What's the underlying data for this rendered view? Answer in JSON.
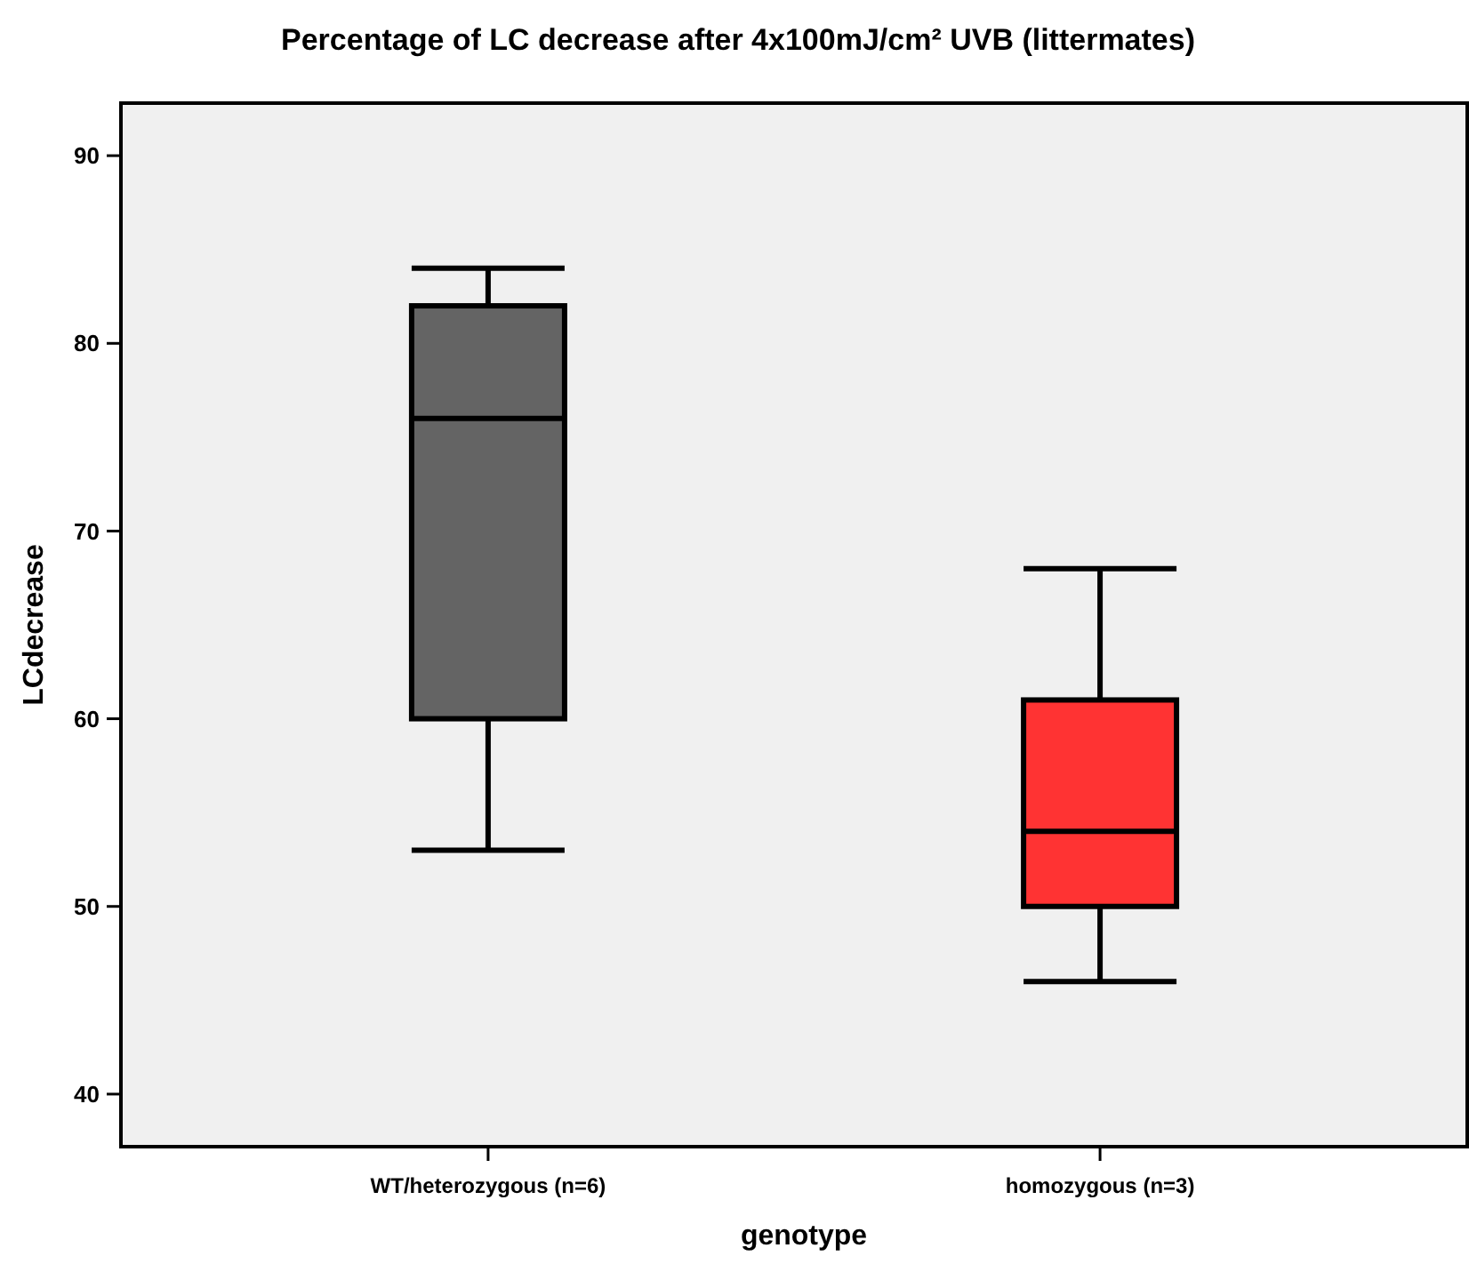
{
  "chart_data": {
    "type": "box",
    "title": "Percentage of LC decrease after 4x100mJ/cm² UVB (littermates)",
    "xlabel": "genotype",
    "ylabel": "LCdecrease",
    "categories": [
      "WT/heterozygous (n=6)",
      "homozygous (n=3)"
    ],
    "colors": [
      "#646464",
      "#ff3333"
    ],
    "boxes": [
      {
        "low": 53,
        "q1": 60,
        "median": 76,
        "q3": 82,
        "high": 84
      },
      {
        "low": 46,
        "q1": 50,
        "median": 54,
        "q3": 61,
        "high": 68
      }
    ],
    "ylim": [
      37.2,
      92.8
    ],
    "yticks": [
      40,
      50,
      60,
      70,
      80,
      90
    ],
    "grid": false
  }
}
